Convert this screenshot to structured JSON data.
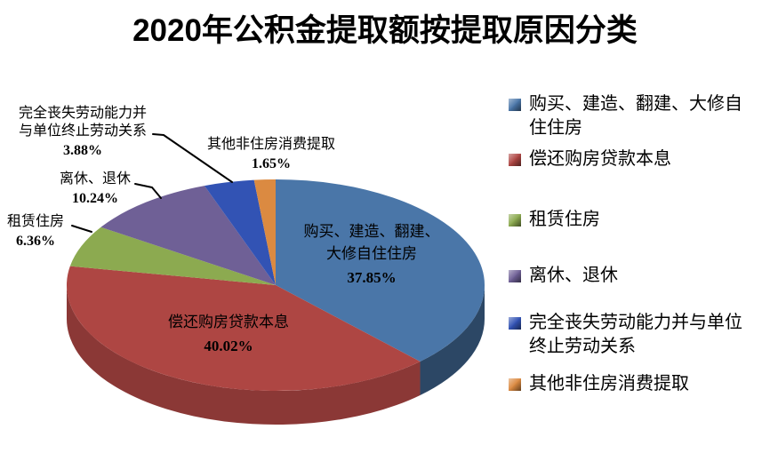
{
  "title": "2020年公积金提取额按提取原因分类",
  "chart_data": {
    "type": "pie",
    "style": "3d",
    "title": "2020年公积金提取额按提取原因分类",
    "legend_position": "right",
    "categories": [
      "购买、建造、翻建、大修自住住房",
      "偿还购房贷款本息",
      "租赁住房",
      "离休、退休",
      "完全丧失劳动能力并与单位终止劳动关系",
      "其他非住房消费提取"
    ],
    "values": [
      37.85,
      40.02,
      6.36,
      10.24,
      3.88,
      1.65
    ],
    "value_labels": [
      "37.85%",
      "40.02%",
      "6.36%",
      "10.24%",
      "3.88%",
      "1.65%"
    ],
    "colors": [
      "#4A76A8",
      "#AE4643",
      "#8CAA50",
      "#6F6096",
      "#3253B4",
      "#DB8A41"
    ],
    "label_lines": [
      [
        "购买、建造、翻建、",
        "大修自住住房"
      ],
      [
        "偿还购房贷款本息"
      ],
      [
        "租赁住房"
      ],
      [
        "离休、退休"
      ],
      [
        "完全丧失劳动能力并",
        "与单位终止劳动关系"
      ],
      [
        "其他非住房消费提取"
      ]
    ],
    "label_placement": [
      "inside",
      "inside",
      "outside",
      "outside",
      "outside",
      "outside"
    ]
  }
}
